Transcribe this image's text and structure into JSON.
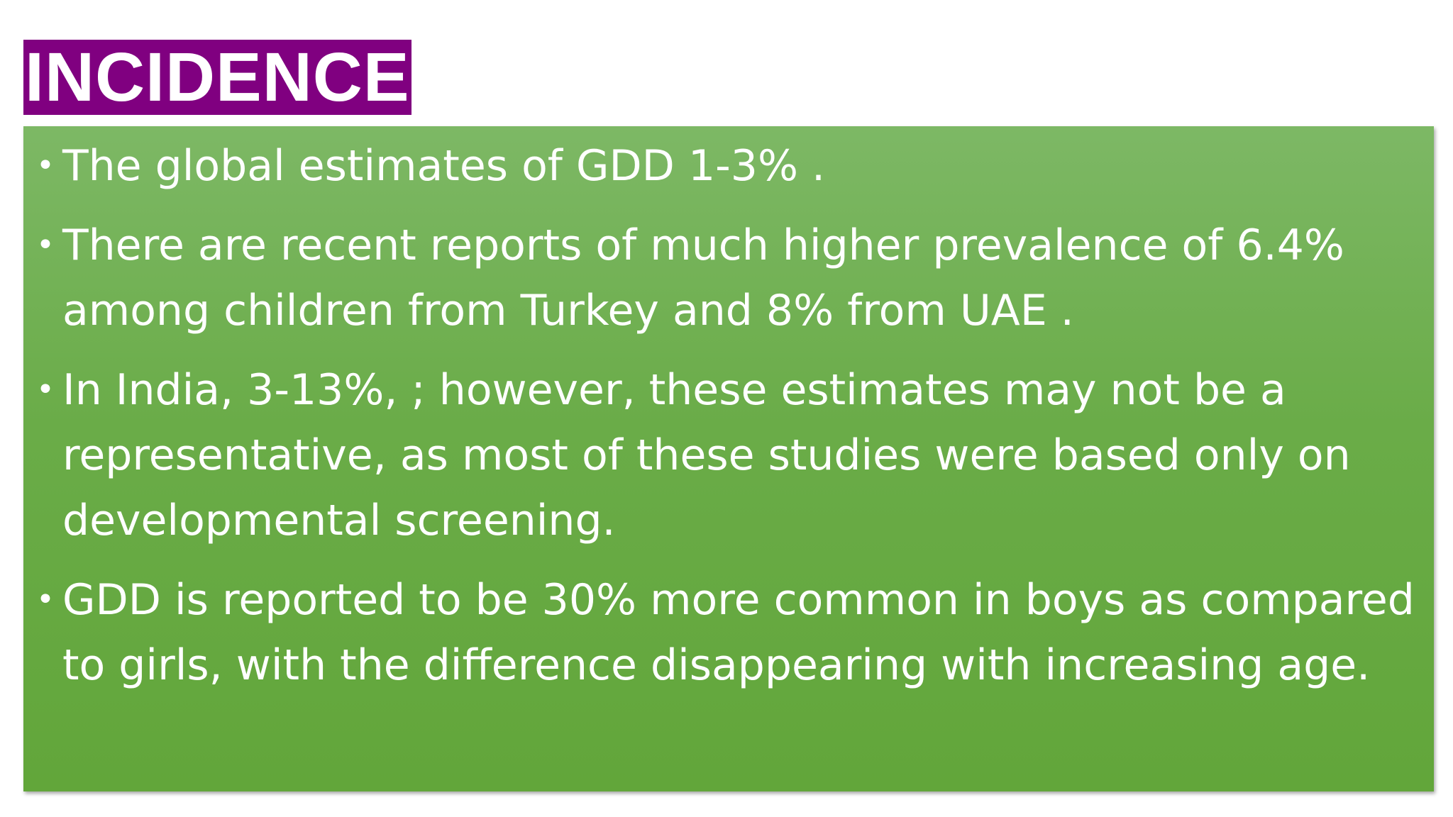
{
  "slide": {
    "title": "INCIDENCE",
    "bullets": [
      "The global estimates of GDD  1-3% .",
      "There are recent reports of much higher prevalence of 6.4% among children from Turkey and 8% from UAE .",
      "In India, 3-13%, ; however, these estimates may not be a representative, as most of these studies were based only on developmental screening.",
      "GDD is reported to be 30% more common in boys as compared to girls, with the difference disappearing with increasing age."
    ],
    "bullet_symbol": "•"
  },
  "colors": {
    "title_background": "#800080",
    "title_text": "#ffffff",
    "content_background": "#6aac48",
    "content_text": "#ffffff"
  }
}
